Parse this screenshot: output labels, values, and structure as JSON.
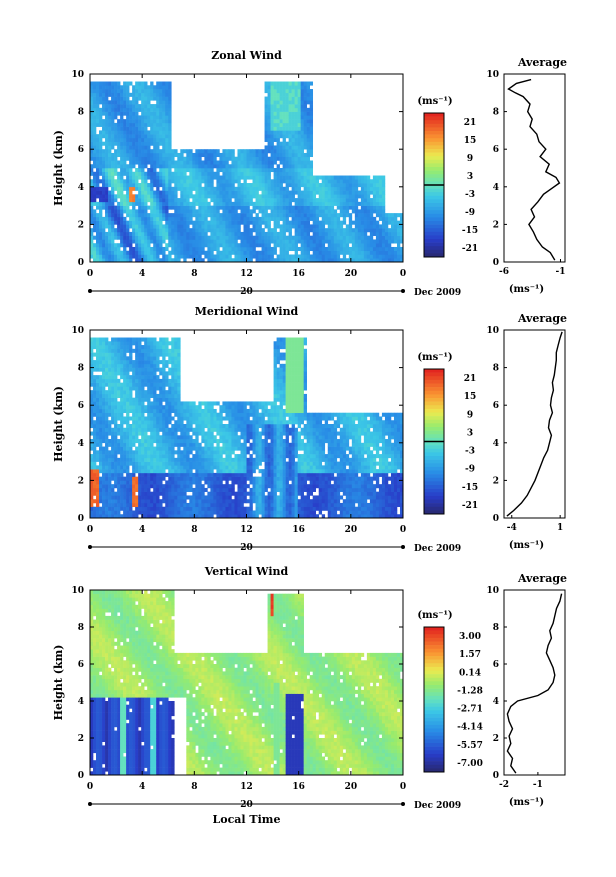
{
  "figure": {
    "date_label": "Dec 2009",
    "xlabel": "Local Time",
    "ylabel": "Height (km)",
    "day_label": "20",
    "avg_title": "Average",
    "unit_label": "(ms⁻¹)"
  },
  "chart_data": [
    {
      "type": "heatmap",
      "title": "Zonal Wind",
      "xlabel": "",
      "ylabel": "Height (km)",
      "x_ticks": [
        "0",
        "4",
        "8",
        "12",
        "16",
        "20",
        "0"
      ],
      "x_tick_values": [
        0,
        4,
        8,
        12,
        16,
        20,
        24
      ],
      "y_ticks": [
        "0",
        "2",
        "4",
        "6",
        "8",
        "10"
      ],
      "y_tick_values": [
        0,
        2,
        4,
        6,
        8,
        10
      ],
      "xlim": [
        0,
        24
      ],
      "ylim": [
        0,
        10
      ],
      "colorbar": {
        "unit": "(ms⁻¹)",
        "labels": [
          "21",
          "15",
          "9",
          "3",
          "-3",
          "-9",
          "-15",
          "-21"
        ],
        "range": [
          -24,
          24
        ]
      },
      "average": {
        "title": "Average",
        "xlabel": "(ms⁻¹)",
        "x_ticks": [
          "-6",
          "-1"
        ],
        "x_tick_values": [
          -6,
          -1
        ],
        "xlim": [
          -6,
          -0.6
        ],
        "y_ticks": [
          "0",
          "2",
          "4",
          "6",
          "8",
          "10"
        ],
        "ylim": [
          0,
          10
        ],
        "profile_height": [
          0.1,
          0.5,
          0.8,
          1.2,
          1.6,
          2.0,
          2.4,
          2.8,
          3.2,
          3.6,
          3.9,
          4.2,
          4.5,
          4.8,
          5.2,
          5.6,
          6.0,
          6.4,
          6.8,
          7.2,
          7.6,
          8.0,
          8.4,
          8.8,
          9.0,
          9.2,
          9.5,
          9.7
        ],
        "profile_value": [
          -1.5,
          -1.9,
          -2.6,
          -3.1,
          -3.4,
          -3.8,
          -3.3,
          -3.6,
          -3.0,
          -2.5,
          -1.8,
          -1.1,
          -1.4,
          -2.3,
          -2.0,
          -2.8,
          -2.3,
          -2.9,
          -3.1,
          -3.7,
          -3.5,
          -3.9,
          -3.7,
          -4.3,
          -5.0,
          -5.6,
          -4.9,
          -3.6
        ]
      }
    },
    {
      "type": "heatmap",
      "title": "Meridional Wind",
      "xlabel": "",
      "ylabel": "Height (km)",
      "x_ticks": [
        "0",
        "4",
        "8",
        "12",
        "16",
        "20",
        "0"
      ],
      "x_tick_values": [
        0,
        4,
        8,
        12,
        16,
        20,
        24
      ],
      "y_ticks": [
        "0",
        "2",
        "4",
        "6",
        "8",
        "10"
      ],
      "y_tick_values": [
        0,
        2,
        4,
        6,
        8,
        10
      ],
      "xlim": [
        0,
        24
      ],
      "ylim": [
        0,
        10
      ],
      "colorbar": {
        "unit": "(ms⁻¹)",
        "labels": [
          "21",
          "15",
          "9",
          "3",
          "-3",
          "-9",
          "-15",
          "-21"
        ],
        "range": [
          -24,
          24
        ]
      },
      "average": {
        "title": "Average",
        "xlabel": "(ms⁻¹)",
        "x_ticks": [
          "-4",
          "1"
        ],
        "x_tick_values": [
          -4,
          1
        ],
        "xlim": [
          -4.8,
          1.5
        ],
        "y_ticks": [
          "0",
          "2",
          "4",
          "6",
          "8",
          "10"
        ],
        "ylim": [
          0,
          10
        ],
        "profile_height": [
          0.1,
          0.4,
          0.8,
          1.2,
          1.6,
          2.0,
          2.4,
          2.8,
          3.2,
          3.6,
          4.0,
          4.4,
          4.8,
          5.2,
          5.6,
          6.0,
          6.4,
          6.8,
          7.2,
          7.6,
          8.0,
          8.4,
          8.8,
          9.2,
          9.6,
          9.9
        ],
        "profile_value": [
          -4.5,
          -3.8,
          -3.0,
          -2.4,
          -2.0,
          -1.6,
          -1.3,
          -1.0,
          -0.7,
          -0.3,
          -0.1,
          0.1,
          -0.2,
          -0.1,
          0.2,
          0.0,
          0.1,
          0.3,
          0.2,
          0.4,
          0.5,
          0.6,
          0.6,
          0.8,
          1.0,
          1.2
        ]
      }
    },
    {
      "type": "heatmap",
      "title": "Vertical Wind",
      "xlabel": "Local Time",
      "ylabel": "Height (km)",
      "x_ticks": [
        "0",
        "4",
        "8",
        "12",
        "16",
        "20",
        "0"
      ],
      "x_tick_values": [
        0,
        4,
        8,
        12,
        16,
        20,
        24
      ],
      "y_ticks": [
        "0",
        "2",
        "4",
        "6",
        "8",
        "10"
      ],
      "y_tick_values": [
        0,
        2,
        4,
        6,
        8,
        10
      ],
      "xlim": [
        0,
        24
      ],
      "ylim": [
        0,
        10
      ],
      "colorbar": {
        "unit": "(ms⁻¹)",
        "labels": [
          "3.00",
          "1.57",
          "0.14",
          "-1.28",
          "-2.71",
          "-4.14",
          "-5.57",
          "-7.00"
        ],
        "range": [
          -7,
          3
        ]
      },
      "average": {
        "title": "Average",
        "xlabel": "(ms⁻¹)",
        "x_ticks": [
          "-2",
          "-1"
        ],
        "x_tick_values": [
          -2,
          -1
        ],
        "xlim": [
          -2,
          -0.2
        ],
        "y_ticks": [
          "0",
          "2",
          "4",
          "6",
          "8",
          "10"
        ],
        "ylim": [
          0,
          10
        ],
        "profile_height": [
          0.1,
          0.5,
          0.9,
          1.3,
          1.7,
          2.1,
          2.5,
          2.9,
          3.3,
          3.7,
          4.0,
          4.3,
          4.6,
          5.0,
          5.4,
          5.8,
          6.2,
          6.6,
          7.0,
          7.4,
          7.8,
          8.2,
          8.6,
          9.0,
          9.4,
          9.8
        ],
        "profile_value": [
          -1.65,
          -1.8,
          -1.75,
          -1.9,
          -1.8,
          -1.85,
          -1.75,
          -1.85,
          -1.9,
          -1.8,
          -1.6,
          -1.0,
          -0.7,
          -0.55,
          -0.5,
          -0.55,
          -0.65,
          -0.75,
          -0.7,
          -0.6,
          -0.65,
          -0.55,
          -0.5,
          -0.45,
          -0.35,
          -0.3
        ]
      }
    }
  ]
}
